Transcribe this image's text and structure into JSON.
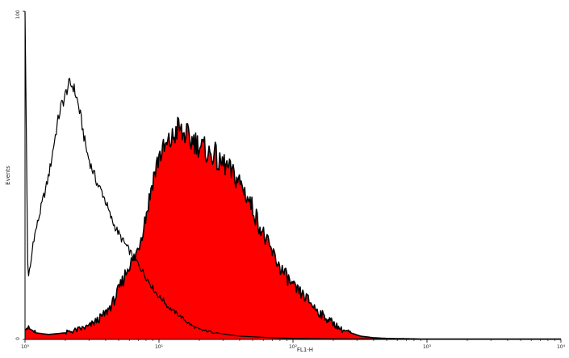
{
  "chart_data": {
    "type": "area",
    "title": "",
    "xlabel": "FL1-H",
    "ylabel": "Events",
    "x_scale": "log",
    "xlim": [
      1,
      10000
    ],
    "ylim": [
      0,
      100
    ],
    "x_ticks": [
      "10⁰",
      "10¹",
      "10²",
      "10³",
      "10⁴"
    ],
    "y_ticks": [
      "0",
      "100"
    ],
    "grid": false,
    "series": [
      {
        "style": "outline",
        "color": "#000000",
        "x": [
          1.0,
          1.05,
          1.1,
          1.15,
          1.25,
          1.35,
          1.45,
          1.55,
          1.65,
          1.75,
          1.85,
          1.95,
          2.05,
          2.15,
          2.3,
          2.45,
          2.6,
          2.75,
          2.9,
          3.1,
          3.3,
          3.5,
          3.75,
          4.0,
          4.3,
          4.6,
          4.9,
          5.2,
          5.6,
          6.0,
          6.5,
          7.0,
          7.5,
          8.0,
          8.6,
          9.2,
          10.0,
          10.8,
          11.6,
          12.5,
          13.5,
          14.5,
          15.5,
          16.5,
          18.0,
          20.0,
          23.0,
          27.0,
          32.0,
          40.0,
          50.0,
          70.0,
          100.0,
          200.0,
          1000.0,
          10000.0
        ],
        "y": [
          100,
          19,
          22,
          30,
          36,
          42,
          47,
          53,
          60,
          66,
          71,
          73,
          76,
          78,
          77,
          73,
          68,
          62,
          57,
          53,
          50,
          47,
          45,
          42,
          38,
          35,
          33,
          31,
          29,
          27,
          25,
          23,
          21,
          19,
          17,
          15,
          13,
          12,
          10,
          9,
          8,
          7,
          6,
          5,
          4,
          3,
          2.5,
          2,
          1.5,
          1,
          0.8,
          0.5,
          0.3,
          0.2,
          0.1,
          0.1
        ]
      },
      {
        "style": "filled",
        "color": "#ff0000",
        "x": [
          1.0,
          1.2,
          1.5,
          2.0,
          2.5,
          3.0,
          3.5,
          4.0,
          4.5,
          5.0,
          5.5,
          6.0,
          6.5,
          7.0,
          7.5,
          8.0,
          8.5,
          9.0,
          9.5,
          10.0,
          11.0,
          12.0,
          13.0,
          14.0,
          15.0,
          16.0,
          17.0,
          18.0,
          20.0,
          22.0,
          24.0,
          26.0,
          28.0,
          30.0,
          33.0,
          36.0,
          40.0,
          45.0,
          50.0,
          56.0,
          63.0,
          71.0,
          80.0,
          90.0,
          100.0,
          115.0,
          130.0,
          150.0,
          170.0,
          200.0,
          230.0,
          270.0,
          320.0,
          400.0,
          500.0,
          700.0,
          1000.0,
          10000.0
        ],
        "y": [
          4,
          2,
          1.5,
          2,
          3,
          4,
          6,
          8,
          11,
          15,
          19,
          23,
          24,
          28,
          33,
          38,
          43,
          49,
          52,
          56,
          58,
          60,
          62,
          65,
          62,
          63,
          60,
          61,
          59,
          58,
          56,
          57,
          53,
          54,
          52,
          50,
          48,
          44,
          40,
          35,
          30,
          26,
          22,
          19,
          16,
          14,
          12,
          9,
          7,
          5,
          3,
          2,
          1,
          0.5,
          0.3,
          0.2,
          0.1,
          0.1
        ]
      }
    ]
  }
}
